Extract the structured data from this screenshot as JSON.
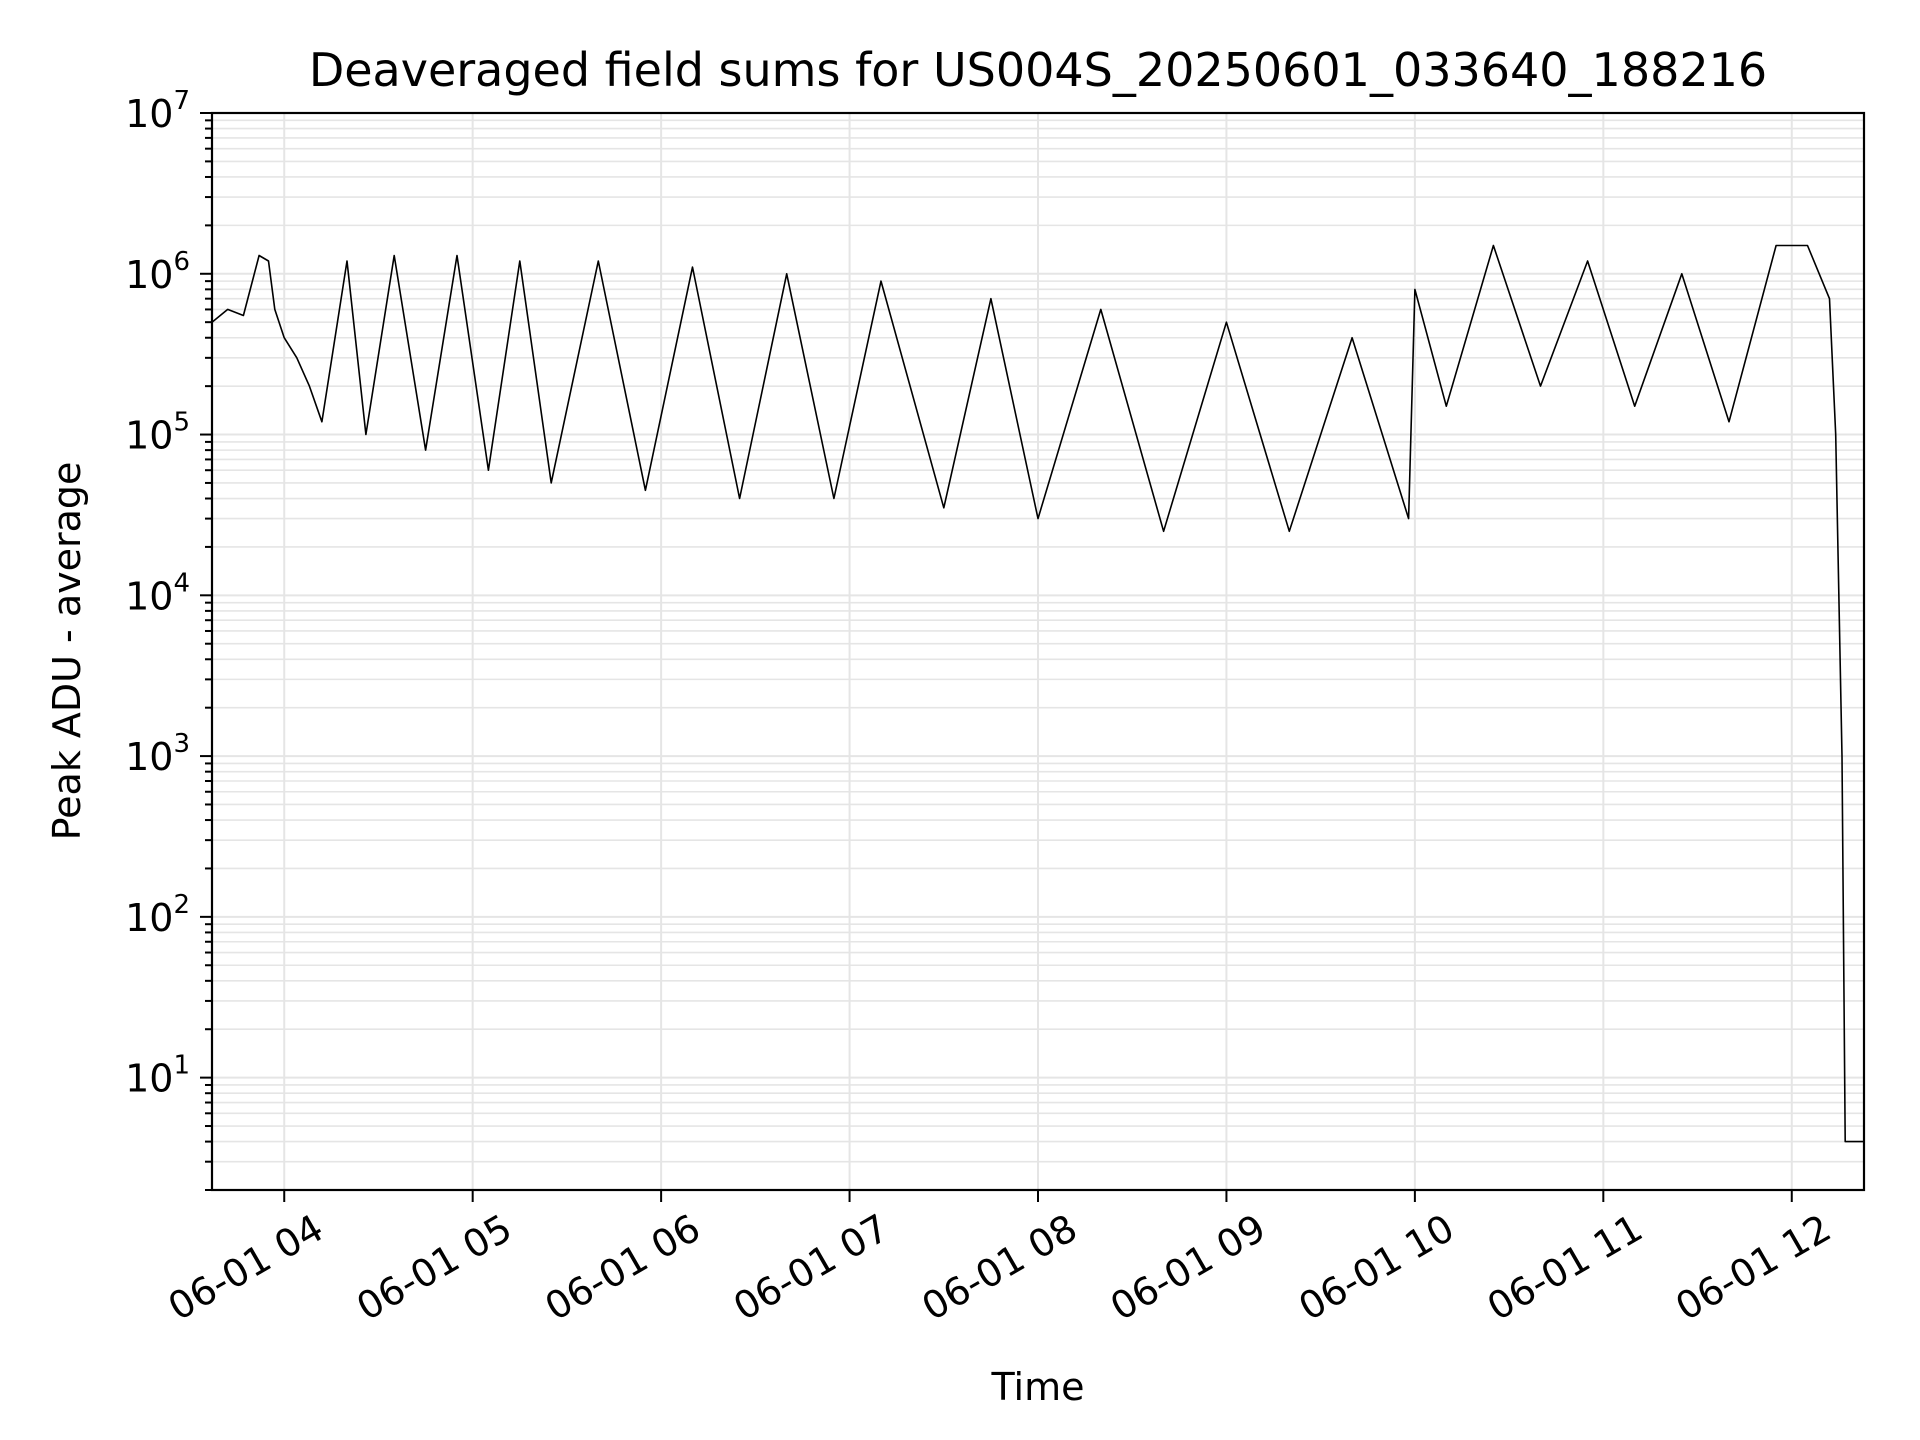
{
  "chart_data": {
    "type": "line",
    "title": "Deaveraged field sums for US004S_20250601_033640_188216",
    "xlabel": "Time",
    "ylabel": "Peak ADU - average",
    "yscale": "log",
    "ylim": [
      2,
      10000000
    ],
    "xlim": [
      "06-01 03:37",
      "06-01 12:23"
    ],
    "grid": true,
    "line_color": "#000000",
    "grid_color": "#e5e5e5",
    "x_ticks": [
      {
        "value": "06-01 04",
        "label": "06-01 04"
      },
      {
        "value": "06-01 05",
        "label": "06-01 05"
      },
      {
        "value": "06-01 06",
        "label": "06-01 06"
      },
      {
        "value": "06-01 07",
        "label": "06-01 07"
      },
      {
        "value": "06-01 08",
        "label": "06-01 08"
      },
      {
        "value": "06-01 09",
        "label": "06-01 09"
      },
      {
        "value": "06-01 10",
        "label": "06-01 10"
      },
      {
        "value": "06-01 11",
        "label": "06-01 11"
      },
      {
        "value": "06-01 12",
        "label": "06-01 12"
      }
    ],
    "y_ticks": [
      {
        "value": 10,
        "base": "10",
        "exp": "1"
      },
      {
        "value": 100,
        "base": "10",
        "exp": "2"
      },
      {
        "value": 1000,
        "base": "10",
        "exp": "3"
      },
      {
        "value": 10000,
        "base": "10",
        "exp": "4"
      },
      {
        "value": 100000,
        "base": "10",
        "exp": "5"
      },
      {
        "value": 1000000,
        "base": "10",
        "exp": "6"
      },
      {
        "value": 10000000,
        "base": "10",
        "exp": "7"
      }
    ],
    "series": [
      {
        "points": [
          [
            "06-01 03:37",
            500000
          ],
          [
            "06-01 03:42",
            600000
          ],
          [
            "06-01 03:47",
            550000
          ],
          [
            "06-01 03:52",
            1300000
          ],
          [
            "06-01 03:55",
            1200000
          ],
          [
            "06-01 03:57",
            600000
          ],
          [
            "06-01 04:00",
            400000
          ],
          [
            "06-01 04:04",
            300000
          ],
          [
            "06-01 04:08",
            200000
          ],
          [
            "06-01 04:12",
            120000
          ],
          [
            "06-01 04:20",
            1200000
          ],
          [
            "06-01 04:26",
            100000
          ],
          [
            "06-01 04:35",
            1300000
          ],
          [
            "06-01 04:45",
            80000
          ],
          [
            "06-01 04:55",
            1300000
          ],
          [
            "06-01 05:05",
            60000
          ],
          [
            "06-01 05:15",
            1200000
          ],
          [
            "06-01 05:25",
            50000
          ],
          [
            "06-01 05:40",
            1200000
          ],
          [
            "06-01 05:55",
            45000
          ],
          [
            "06-01 06:10",
            1100000
          ],
          [
            "06-01 06:25",
            40000
          ],
          [
            "06-01 06:40",
            1000000
          ],
          [
            "06-01 06:55",
            40000
          ],
          [
            "06-01 07:10",
            900000
          ],
          [
            "06-01 07:30",
            35000
          ],
          [
            "06-01 07:45",
            700000
          ],
          [
            "06-01 08:00",
            30000
          ],
          [
            "06-01 08:20",
            600000
          ],
          [
            "06-01 08:40",
            25000
          ],
          [
            "06-01 09:00",
            500000
          ],
          [
            "06-01 09:20",
            25000
          ],
          [
            "06-01 09:40",
            400000
          ],
          [
            "06-01 09:58",
            30000
          ],
          [
            "06-01 10:00",
            800000
          ],
          [
            "06-01 10:10",
            150000
          ],
          [
            "06-01 10:25",
            1500000
          ],
          [
            "06-01 10:40",
            200000
          ],
          [
            "06-01 10:55",
            1200000
          ],
          [
            "06-01 11:10",
            150000
          ],
          [
            "06-01 11:25",
            1000000
          ],
          [
            "06-01 11:40",
            120000
          ],
          [
            "06-01 11:55",
            1500000
          ],
          [
            "06-01 12:05",
            1500000
          ],
          [
            "06-01 12:12",
            700000
          ],
          [
            "06-01 12:14",
            100000
          ],
          [
            "06-01 12:16",
            1000
          ],
          [
            "06-01 12:17",
            4
          ],
          [
            "06-01 12:23",
            4
          ]
        ]
      }
    ]
  }
}
